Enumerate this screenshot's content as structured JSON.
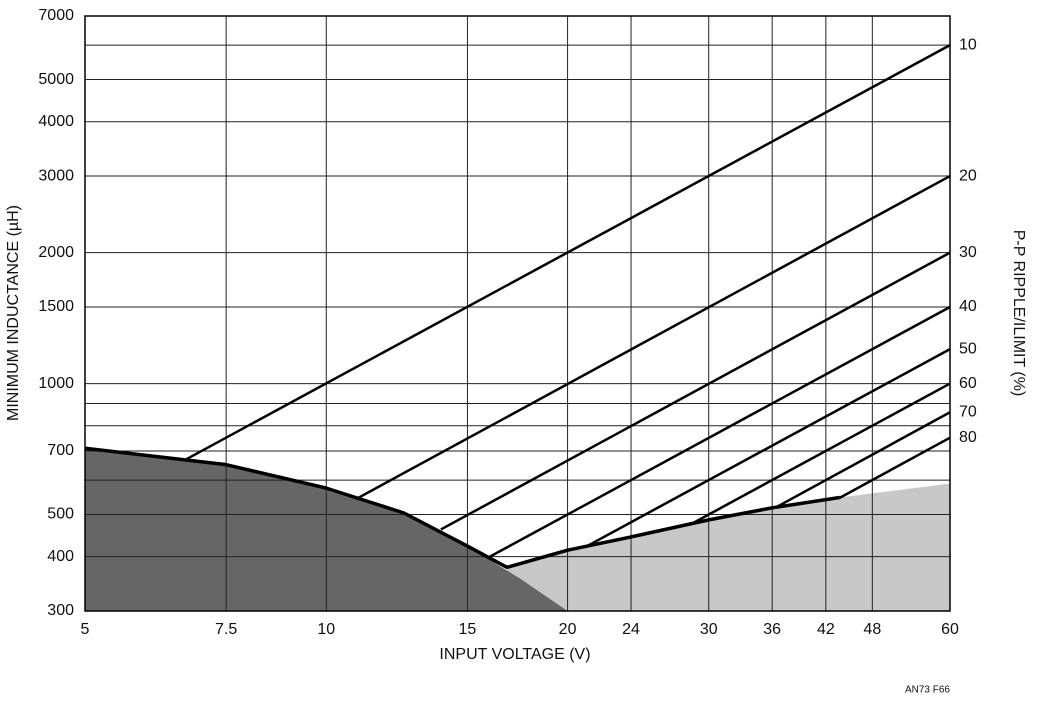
{
  "chart_data": {
    "type": "line",
    "x_label": "INPUT VOLTAGE (V)",
    "y_label": "MINIMUM INDUCTANCE (µH)",
    "y2_label": "P-P RIPPLE/ILIMIT (%)",
    "footnote": "AN73 F66",
    "xscale": "log",
    "yscale": "log",
    "grid": true,
    "xlim": [
      5,
      60
    ],
    "ylim": [
      300,
      7000
    ],
    "xticks": [
      5,
      7.5,
      10,
      15,
      20,
      24,
      30,
      36,
      42,
      48,
      60
    ],
    "yticks": [
      300,
      400,
      500,
      700,
      1000,
      1500,
      2000,
      3000,
      4000,
      5000,
      7000
    ],
    "minor_yticks": [
      600,
      800,
      900,
      6000
    ],
    "series": [
      {
        "name": "10",
        "color": "#000000",
        "x": [
          6.7,
          60
        ],
        "values": [
          671,
          6000
        ]
      },
      {
        "name": "20",
        "color": "#000000",
        "x": [
          10.9,
          60
        ],
        "values": [
          543,
          3000
        ]
      },
      {
        "name": "30",
        "color": "#000000",
        "x": [
          13.9,
          60
        ],
        "values": [
          462,
          2000
        ]
      },
      {
        "name": "40",
        "color": "#000000",
        "x": [
          16,
          60
        ],
        "values": [
          400,
          1500
        ]
      },
      {
        "name": "50",
        "color": "#000000",
        "x": [
          21,
          60
        ],
        "values": [
          420,
          1200
        ]
      },
      {
        "name": "60",
        "color": "#000000",
        "x": [
          28.8,
          60
        ],
        "values": [
          480,
          1000
        ]
      },
      {
        "name": "70",
        "color": "#000000",
        "x": [
          36.3,
          60
        ],
        "values": [
          518,
          859
        ]
      },
      {
        "name": "80",
        "color": "#000000",
        "x": [
          43.7,
          60
        ],
        "values": [
          546,
          751
        ]
      }
    ],
    "boundary": {
      "color": "#000000",
      "x": [
        5,
        7.5,
        10,
        12.5,
        15,
        16.8,
        20,
        24,
        30,
        36,
        43.7
      ],
      "values": [
        710,
        651,
        575,
        504,
        423,
        378,
        414,
        444,
        486,
        518,
        547
      ]
    },
    "regions": [
      {
        "color": "#c8c8c8",
        "x": [
          16.8,
          20,
          30,
          43.7,
          60
        ],
        "values": [
          378,
          414,
          486,
          547,
          589
        ]
      },
      {
        "color": "#666666",
        "x": [
          5,
          7.5,
          10,
          12.5,
          15,
          17.5,
          20
        ],
        "values": [
          710,
          651,
          575,
          504,
          423,
          355,
          300
        ]
      }
    ]
  }
}
